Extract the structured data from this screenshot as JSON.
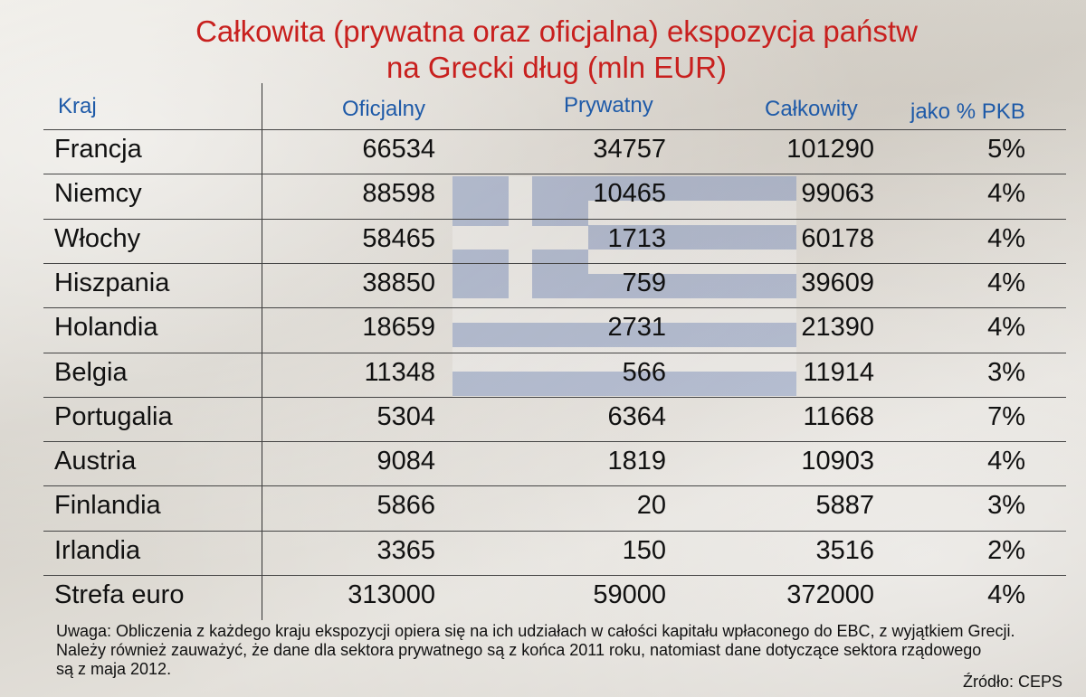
{
  "title_line1": "Całkowita (prywatna oraz oficjalna) ekspozycja państw",
  "title_line2": "na Grecki dług (mln EUR)",
  "headers": {
    "country": "Kraj",
    "official": "Oficjalny",
    "private": "Prywatny",
    "total": "Całkowity",
    "pct": "jako % PKB"
  },
  "rows": [
    {
      "country": "Francja",
      "official": "66534",
      "private": "34757",
      "total": "101290",
      "pct": "5%"
    },
    {
      "country": "Niemcy",
      "official": "88598",
      "private": "10465",
      "total": "99063",
      "pct": "4%"
    },
    {
      "country": "Włochy",
      "official": "58465",
      "private": "1713",
      "total": "60178",
      "pct": "4%"
    },
    {
      "country": "Hiszpania",
      "official": "38850",
      "private": "759",
      "total": "39609",
      "pct": "4%"
    },
    {
      "country": "Holandia",
      "official": "18659",
      "private": "2731",
      "total": "21390",
      "pct": "4%"
    },
    {
      "country": "Belgia",
      "official": "11348",
      "private": "566",
      "total": "11914",
      "pct": "3%"
    },
    {
      "country": "Portugalia",
      "official": "5304",
      "private": "6364",
      "total": "11668",
      "pct": "7%"
    },
    {
      "country": "Austria",
      "official": "9084",
      "private": "1819",
      "total": "10903",
      "pct": "4%"
    },
    {
      "country": "Finlandia",
      "official": "5866",
      "private": "20",
      "total": "5887",
      "pct": "3%"
    },
    {
      "country": "Irlandia",
      "official": "3365",
      "private": "150",
      "total": "3516",
      "pct": "2%"
    },
    {
      "country": "Strefa euro",
      "official": "313000",
      "private": "59000",
      "total": "372000",
      "pct": "4%"
    }
  ],
  "note_lines": [
    "Uwaga: Obliczenia z każdego kraju ekspozycji opiera się na ich udziałach w całości kapitału wpłaconego do EBC, z wyjątkiem Grecji.",
    "Należy również zauważyć, że dane dla sektora prywatnego są z końca 2011 roku, natomiast dane dotyczące sektora rządowego",
    "są z maja 2012."
  ],
  "source": "Źródło: CEPS",
  "colors": {
    "title": "#c8201e",
    "header": "#1e5aa8"
  },
  "chart_data": {
    "type": "table",
    "title": "Całkowita (prywatna oraz oficjalna) ekspozycja państw na Grecki dług (mln EUR)",
    "columns": [
      "Kraj",
      "Oficjalny",
      "Prywatny",
      "Całkowity",
      "jako % PKB"
    ],
    "categories": [
      "Francja",
      "Niemcy",
      "Włochy",
      "Hiszpania",
      "Holandia",
      "Belgia",
      "Portugalia",
      "Austria",
      "Finlandia",
      "Irlandia",
      "Strefa euro"
    ],
    "series": [
      {
        "name": "Oficjalny",
        "values": [
          66534,
          88598,
          58465,
          38850,
          18659,
          11348,
          5304,
          9084,
          5866,
          3365,
          313000
        ]
      },
      {
        "name": "Prywatny",
        "values": [
          34757,
          10465,
          1713,
          759,
          2731,
          566,
          6364,
          1819,
          20,
          150,
          59000
        ]
      },
      {
        "name": "Całkowity",
        "values": [
          101290,
          99063,
          60178,
          39609,
          21390,
          11914,
          11668,
          10903,
          5887,
          3516,
          372000
        ]
      },
      {
        "name": "jako % PKB",
        "values": [
          5,
          4,
          4,
          4,
          4,
          3,
          7,
          4,
          3,
          2,
          4
        ]
      }
    ]
  }
}
